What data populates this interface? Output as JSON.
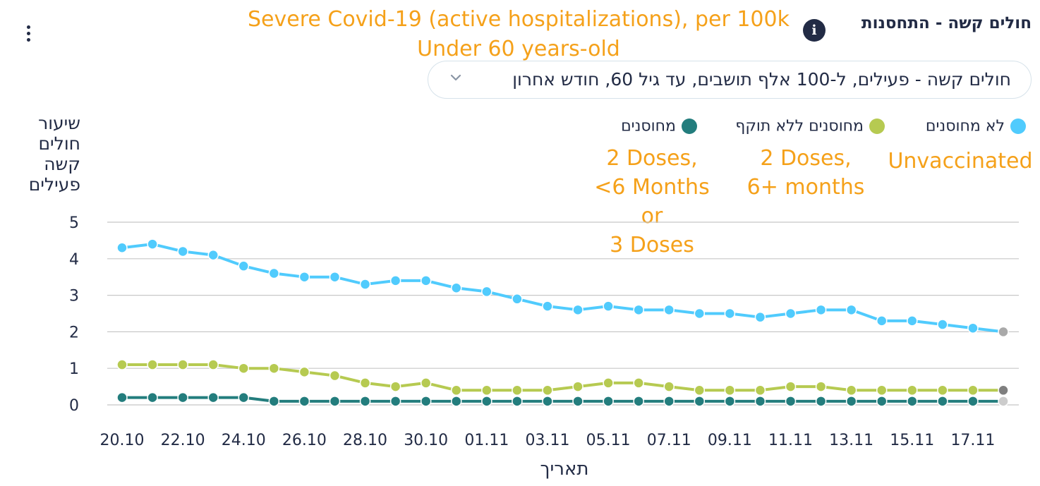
{
  "header": {
    "title": "חולים קשה - התחסנות",
    "info_icon": "info-icon",
    "menu_icon": "kebab-menu-icon"
  },
  "annotations": {
    "title_line1": "Severe Covid-19 (active hospitalizations), per 100k",
    "title_line2": "Under 60 years-old",
    "unvaccinated": "Unvaccinated",
    "expired_line1": "2 Doses,",
    "expired_line2": "6+ months",
    "vaccinated_line1": "2 Doses,",
    "vaccinated_line2": "<6 Months",
    "vaccinated_line3": "or",
    "vaccinated_line4": "3 Doses",
    "color": "#f5a11a"
  },
  "dropdown": {
    "selected": "חולים קשה - פעילים, ל-100 אלף תושבים, עד גיל 60, חודש אחרון",
    "icon": "chevron-down-icon"
  },
  "chart_data": {
    "type": "line",
    "xlabel": "תאריך",
    "ylabel_lines": [
      "שיעור",
      "חולים",
      "קשה",
      "פעילים"
    ],
    "ylim": [
      0,
      5
    ],
    "yticks": [
      "0",
      "1",
      "2",
      "3",
      "4",
      "5"
    ],
    "grid": true,
    "legend_placement": "top-right",
    "x": [
      "20.10",
      "21.10",
      "22.10",
      "23.10",
      "24.10",
      "25.10",
      "26.10",
      "27.10",
      "28.10",
      "29.10",
      "30.10",
      "31.10",
      "01.11",
      "02.11",
      "03.11",
      "04.11",
      "05.11",
      "06.11",
      "07.11",
      "08.11",
      "09.11",
      "10.11",
      "11.11",
      "12.11",
      "13.11",
      "14.11",
      "15.11",
      "16.11",
      "17.11",
      "18.11"
    ],
    "xtick_labels": [
      "20.10",
      "22.10",
      "24.10",
      "26.10",
      "28.10",
      "30.10",
      "01.11",
      "03.11",
      "05.11",
      "07.11",
      "09.11",
      "11.11",
      "13.11",
      "15.11",
      "17.11"
    ],
    "series": [
      {
        "name": "לא מחוסנים",
        "color": "#50cbfd",
        "last_point_color": "#a9a9a9",
        "values": [
          4.3,
          4.4,
          4.2,
          4.1,
          3.8,
          3.6,
          3.5,
          3.5,
          3.3,
          3.4,
          3.4,
          3.2,
          3.1,
          2.9,
          2.7,
          2.6,
          2.7,
          2.6,
          2.6,
          2.5,
          2.5,
          2.4,
          2.5,
          2.6,
          2.6,
          2.3,
          2.3,
          2.2,
          2.1,
          2.0
        ]
      },
      {
        "name": "מחוסנים ללא תוקף",
        "color": "#b6ca51",
        "last_point_color": "#7f7f7f",
        "values": [
          1.1,
          1.1,
          1.1,
          1.1,
          1.0,
          1.0,
          0.9,
          0.8,
          0.6,
          0.5,
          0.6,
          0.4,
          0.4,
          0.4,
          0.4,
          0.5,
          0.6,
          0.6,
          0.5,
          0.4,
          0.4,
          0.4,
          0.5,
          0.5,
          0.4,
          0.4,
          0.4,
          0.4,
          0.4,
          0.4
        ]
      },
      {
        "name": "מחוסנים",
        "color": "#237d7d",
        "last_point_color": "#cccccc",
        "values": [
          0.2,
          0.2,
          0.2,
          0.2,
          0.2,
          0.1,
          0.1,
          0.1,
          0.1,
          0.1,
          0.1,
          0.1,
          0.1,
          0.1,
          0.1,
          0.1,
          0.1,
          0.1,
          0.1,
          0.1,
          0.1,
          0.1,
          0.1,
          0.1,
          0.1,
          0.1,
          0.1,
          0.1,
          0.1,
          0.1
        ]
      }
    ]
  }
}
